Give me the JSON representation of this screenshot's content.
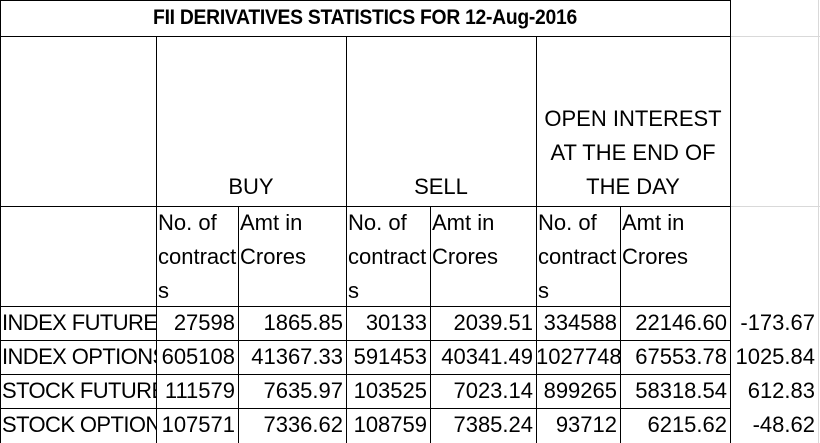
{
  "title": "FII DERIVATIVES STATISTICS FOR 12-Aug-2016",
  "groups": {
    "buy": "BUY",
    "sell": "SELL",
    "oi": "OPEN INTEREST AT THE END OF THE DAY"
  },
  "sub_headers": {
    "contracts": "No. of contract s",
    "amount": "Amt in Crores"
  },
  "rows": [
    {
      "label": "INDEX FUTURES",
      "buy_contracts": "27598",
      "buy_amt": "1865.85",
      "sell_contracts": "30133",
      "sell_amt": "2039.51",
      "oi_contracts": "334588",
      "oi_amt": "22146.60",
      "net": "-173.67"
    },
    {
      "label": "INDEX OPTIONS",
      "buy_contracts": "605108",
      "buy_amt": "41367.33",
      "sell_contracts": "591453",
      "sell_amt": "40341.49",
      "oi_contracts": "1027748",
      "oi_amt": "67553.78",
      "net": "1025.84"
    },
    {
      "label": "STOCK FUTURES",
      "buy_contracts": "111579",
      "buy_amt": "7635.97",
      "sell_contracts": "103525",
      "sell_amt": "7023.14",
      "oi_contracts": "899265",
      "oi_amt": "58318.54",
      "net": "612.83"
    },
    {
      "label": "STOCK OPTIONS",
      "buy_contracts": "107571",
      "buy_amt": "7336.62",
      "sell_contracts": "108759",
      "sell_amt": "7385.24",
      "oi_contracts": "93712",
      "oi_amt": "6215.62",
      "net": "-48.62"
    }
  ]
}
